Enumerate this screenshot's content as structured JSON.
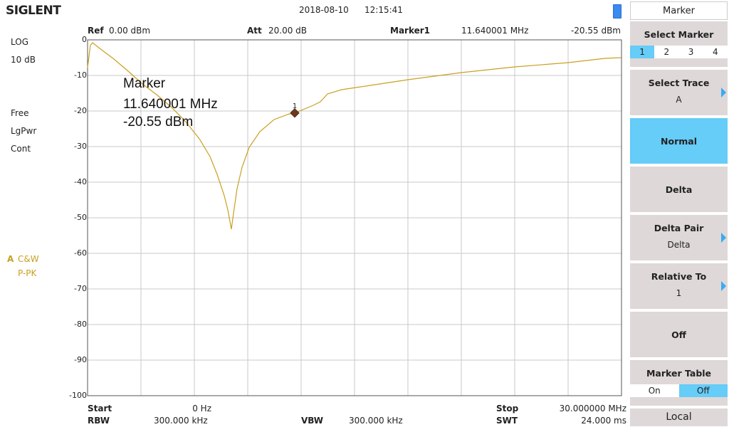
{
  "header": {
    "logo": "SIGLENT",
    "date": "2018-08-10",
    "time": "12:15:41"
  },
  "info": {
    "ref_label": "Ref",
    "ref_value": "0.00 dBm",
    "att_label": "Att",
    "att_value": "20.00 dB",
    "marker_label": "Marker1",
    "marker_freq": "11.640001 MHz",
    "marker_level": "-20.55 dBm"
  },
  "left": {
    "scale": "LOG",
    "div": "10 dB",
    "trig": "Free",
    "det": "LgPwr",
    "sweep": "Cont",
    "trace_mode": "C&W",
    "trace_det": "P-PK"
  },
  "bottom": {
    "start_label": "Start",
    "start_value": "0 Hz",
    "stop_label": "Stop",
    "stop_value": "30.000000 MHz",
    "rbw_label": "RBW",
    "rbw_value": "300.000 kHz",
    "vbw_label": "VBW",
    "vbw_value": "300.000 kHz",
    "swt_label": "SWT",
    "swt_value": "24.000 ms"
  },
  "chart_data": {
    "type": "line",
    "x": [
      0,
      0.16,
      0.28,
      0.68,
      1.48,
      2.28,
      3.08,
      3.88,
      4.68,
      5.48,
      6.28,
      6.88,
      7.28,
      7.68,
      7.88,
      8.08,
      8.2,
      8.4,
      8.68,
      9.08,
      9.68,
      10.48,
      11.28,
      11.64,
      12.68,
      13.08,
      13.48,
      14.28,
      15.88,
      18,
      21,
      24,
      27,
      29.08,
      30
    ],
    "series": [
      {
        "name": "A",
        "color": "#c9a020",
        "values": [
          -7.8,
          -1.5,
          -0.8,
          -2.4,
          -5.4,
          -8.8,
          -12.4,
          -15.4,
          -18.8,
          -22.8,
          -27.8,
          -32.8,
          -37.8,
          -43.8,
          -47.8,
          -53.2,
          -48.8,
          -41.8,
          -35.8,
          -30.2,
          -25.8,
          -22.4,
          -20.9,
          -20.55,
          -18.4,
          -17.4,
          -15.2,
          -14,
          -12.8,
          -11.2,
          -9.2,
          -7.6,
          -6.4,
          -5.2,
          -5
        ]
      }
    ],
    "xlim": [
      0,
      30
    ],
    "ylim": [
      -100,
      0
    ],
    "yticks": [
      0,
      -10,
      -20,
      -30,
      -40,
      -50,
      -60,
      -70,
      -80,
      -90,
      -100
    ],
    "grid": true,
    "marker": {
      "label": "1",
      "x": 11.640001,
      "y": -20.55,
      "color": "#7a3410"
    },
    "annotation": [
      "Marker",
      "11.640001 MHz",
      "-20.55 dBm"
    ]
  },
  "menu": {
    "title": "Marker",
    "items": [
      {
        "label": "Select Marker",
        "options": [
          "1",
          "2",
          "3",
          "4"
        ],
        "selected": 0
      },
      {
        "label": "Select Trace",
        "value": "A",
        "arrow": true
      },
      {
        "label": "Normal",
        "active": true
      },
      {
        "label": "Delta"
      },
      {
        "label": "Delta Pair",
        "value": "Delta",
        "arrow": true
      },
      {
        "label": "Relative To",
        "value": "1",
        "arrow": true
      },
      {
        "label": "Off"
      },
      {
        "label": "Marker Table",
        "options": [
          "On",
          "Off"
        ],
        "selected": 1
      }
    ],
    "footer": "Local"
  }
}
